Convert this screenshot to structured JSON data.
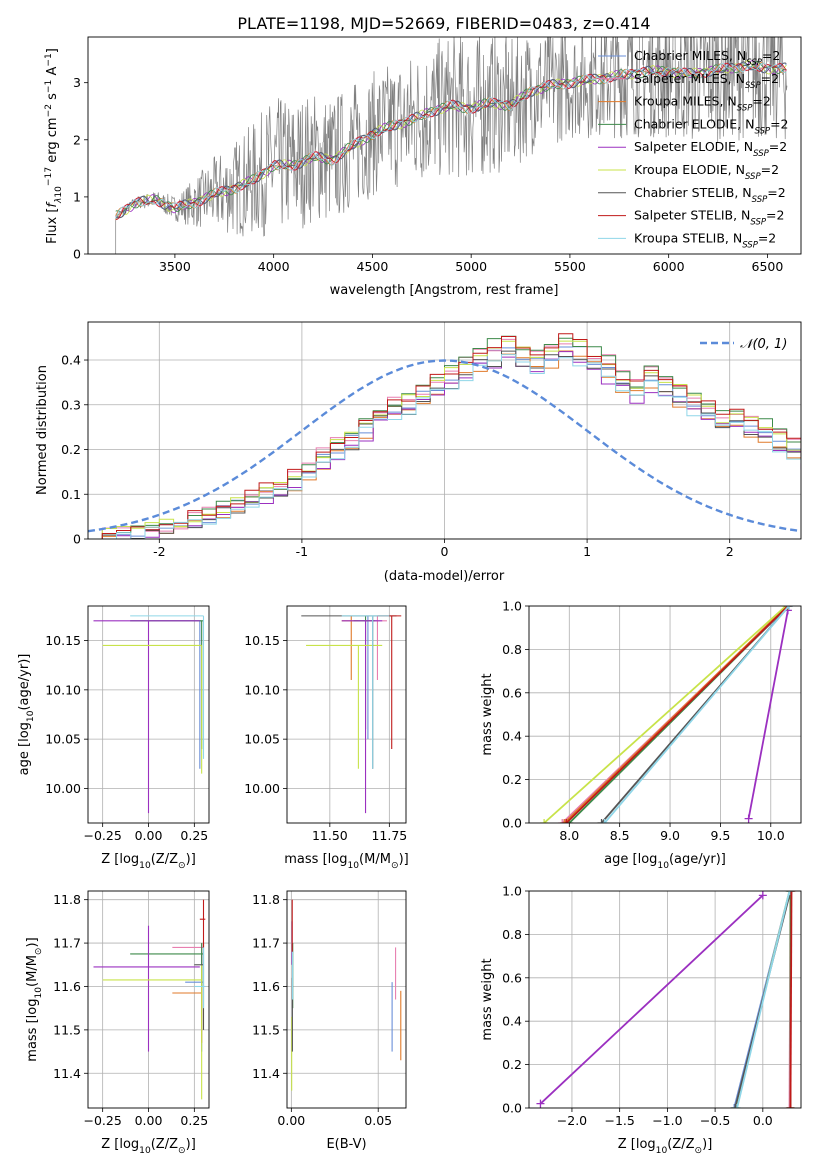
{
  "figure_title": "PLATE=1198, MJD=52669, FIBERID=0483, z=0.414",
  "legend": [
    {
      "label": "Chabrier MILES, N_SSP=2",
      "prefix": "Chabrier MILES, N",
      "color": "#6a8fd8"
    },
    {
      "label": "Salpeter MILES, N_SSP=2",
      "prefix": "Salpeter MILES, N",
      "color": "#e87fb0"
    },
    {
      "label": "Kroupa MILES, N_SSP=2",
      "prefix": "Kroupa MILES, N",
      "color": "#e07a2a"
    },
    {
      "label": "Chabrier ELODIE, N_SSP=2",
      "prefix": "Chabrier ELODIE, N",
      "color": "#3d8a4a"
    },
    {
      "label": "Salpeter ELODIE, N_SSP=2",
      "prefix": "Salpeter ELODIE, N",
      "color": "#9b30c0"
    },
    {
      "label": "Kroupa ELODIE, N_SSP=2",
      "prefix": "Kroupa ELODIE, N",
      "color": "#c8e34a"
    },
    {
      "label": "Chabrier STELIB, N_SSP=2",
      "prefix": "Chabrier STELIB, N",
      "color": "#555555"
    },
    {
      "label": "Salpeter STELIB, N_SSP=2",
      "prefix": "Salpeter STELIB, N",
      "color": "#c01a1a"
    },
    {
      "label": "Kroupa STELIB, N_SSP=2",
      "prefix": "Kroupa STELIB, N",
      "color": "#8fd6e8"
    }
  ],
  "legend_sub": "SSP",
  "legend_suffix": "=2",
  "normal_legend": "𝒩(0, 1)",
  "chart_data": [
    {
      "id": "spectrum",
      "type": "line",
      "xlabel": "wavelength [Angstrom, rest frame]",
      "ylabel_parts": [
        "Flux [",
        "f",
        "λ",
        "10",
        "−17",
        " erg cm",
        "−2",
        " s",
        "−1",
        " A",
        "−1",
        "]"
      ],
      "xlim": [
        3060,
        6670
      ],
      "ylim": [
        0,
        3.8
      ],
      "xticks": [
        3500,
        4000,
        4500,
        5000,
        5500,
        6000,
        6500
      ],
      "yticks": [
        0,
        1,
        2,
        3
      ],
      "data_start": 3200,
      "model_anchors": [
        [
          3200,
          0.65
        ],
        [
          3300,
          0.9
        ],
        [
          3400,
          0.95
        ],
        [
          3500,
          0.8
        ],
        [
          3600,
          0.9
        ],
        [
          3700,
          1.05
        ],
        [
          3800,
          1.15
        ],
        [
          3900,
          1.3
        ],
        [
          4000,
          1.55
        ],
        [
          4100,
          1.55
        ],
        [
          4200,
          1.7
        ],
        [
          4300,
          1.65
        ],
        [
          4400,
          1.9
        ],
        [
          4500,
          2.1
        ],
        [
          4600,
          2.25
        ],
        [
          4700,
          2.35
        ],
        [
          4800,
          2.5
        ],
        [
          4900,
          2.6
        ],
        [
          5000,
          2.55
        ],
        [
          5100,
          2.65
        ],
        [
          5200,
          2.6
        ],
        [
          5300,
          2.85
        ],
        [
          5400,
          2.95
        ],
        [
          5500,
          3.0
        ],
        [
          5600,
          3.05
        ],
        [
          5700,
          3.1
        ],
        [
          5800,
          3.15
        ],
        [
          5900,
          3.2
        ],
        [
          6000,
          3.2
        ],
        [
          6100,
          3.15
        ],
        [
          6200,
          3.2
        ],
        [
          6300,
          3.25
        ],
        [
          6400,
          3.3
        ],
        [
          6500,
          3.25
        ]
      ],
      "noise_anchors": [
        [
          3200,
          0.05
        ],
        [
          3500,
          0.2
        ],
        [
          3700,
          0.6
        ],
        [
          4000,
          1.1
        ],
        [
          4500,
          1.0
        ],
        [
          5000,
          1.2
        ],
        [
          5500,
          0.9
        ],
        [
          6000,
          1.1
        ],
        [
          6500,
          1.2
        ]
      ]
    },
    {
      "id": "residuals",
      "type": "histogram",
      "xlabel": "(data-model)/error",
      "ylabel": "Normed distribution",
      "xlim": [
        -2.5,
        2.5
      ],
      "ylim": [
        0,
        0.485
      ],
      "xticks": [
        -2,
        -1,
        0,
        1,
        2
      ],
      "yticks": [
        0.0,
        0.1,
        0.2,
        0.3,
        0.4
      ],
      "bin_start": -2.5,
      "bin_width": 0.1,
      "base_bins": [
        0.005,
        0.008,
        0.012,
        0.015,
        0.02,
        0.025,
        0.03,
        0.04,
        0.05,
        0.06,
        0.075,
        0.09,
        0.1,
        0.11,
        0.13,
        0.15,
        0.18,
        0.2,
        0.22,
        0.25,
        0.27,
        0.29,
        0.3,
        0.32,
        0.34,
        0.36,
        0.38,
        0.4,
        0.41,
        0.42,
        0.41,
        0.4,
        0.41,
        0.43,
        0.42,
        0.4,
        0.38,
        0.35,
        0.33,
        0.36,
        0.34,
        0.32,
        0.3,
        0.28,
        0.26,
        0.27,
        0.25,
        0.24,
        0.22,
        0.2,
        0.18,
        0.2,
        0.17,
        0.15,
        0.13,
        0.1,
        0.09,
        0.08,
        0.075,
        0.07,
        0.06,
        0.05,
        0.045,
        0.04,
        0.045,
        0.04,
        0.035,
        0.04,
        0.035,
        0.04,
        0.04,
        0.04,
        0.045,
        0.04,
        0.04,
        0.045,
        0.04,
        0.045,
        0.04,
        0.045
      ],
      "series_offsets": [
        0.0,
        0.015,
        -0.012,
        0.02,
        -0.018,
        0.01,
        -0.008,
        0.018,
        -0.015
      ],
      "normal": {
        "mean": 0,
        "sigma": 1,
        "color": "#5b8bd9",
        "dash": true
      }
    },
    {
      "id": "age_vs_Z",
      "type": "errorbar",
      "xlabel_parts": [
        "Z [log",
        "10",
        "(Z/Z",
        "⊙",
        ")]"
      ],
      "ylabel_parts": [
        "age  [log",
        "10",
        "(age/yr)]"
      ],
      "xlim": [
        -0.33,
        0.33
      ],
      "ylim": [
        9.965,
        10.185
      ],
      "xticks": [
        -0.25,
        0.0,
        0.25
      ],
      "xticklabels": [
        "−0.25",
        "0.00",
        "0.25"
      ],
      "yticks": [
        10.0,
        10.05,
        10.1,
        10.15
      ],
      "yticklabels": [
        "10.00",
        "10.05",
        "10.10",
        "10.15"
      ],
      "points": [
        {
          "x": 0.28,
          "y": 10.17,
          "xlo": -0.1,
          "xhi": 0.29,
          "ylo": 10.02,
          "yhi": 10.17,
          "c": 0
        },
        {
          "x": 0.29,
          "y": 10.17,
          "xlo": -0.1,
          "xhi": 0.3,
          "ylo": 10.04,
          "yhi": 10.17,
          "c": 3
        },
        {
          "x": 0.0,
          "y": 10.17,
          "xlo": -0.3,
          "xhi": 0.28,
          "ylo": 9.975,
          "yhi": 10.17,
          "c": 4
        },
        {
          "x": 0.29,
          "y": 10.145,
          "xlo": -0.25,
          "xhi": 0.29,
          "ylo": 10.015,
          "yhi": 10.145,
          "c": 5
        },
        {
          "x": 0.3,
          "y": 10.175,
          "xlo": -0.1,
          "xhi": 0.3,
          "ylo": 10.03,
          "yhi": 10.175,
          "c": 8
        }
      ]
    },
    {
      "id": "age_vs_mass",
      "type": "errorbar",
      "xlabel_parts": [
        "mass [log",
        "10",
        "(M/M",
        "⊙",
        ")]"
      ],
      "xlim": [
        11.32,
        11.82
      ],
      "ylim": [
        9.965,
        10.185
      ],
      "xticks": [
        11.5,
        11.75
      ],
      "xticklabels": [
        "11.50",
        "11.75"
      ],
      "yticks": [
        10.0,
        10.05,
        10.1,
        10.15
      ],
      "yticklabels": [
        "10.00",
        "10.05",
        "10.10",
        "10.15"
      ],
      "points": [
        {
          "x": 11.66,
          "y": 10.17,
          "xlo": 11.6,
          "xhi": 11.7,
          "ylo": 10.05,
          "yhi": 10.175,
          "c": 0
        },
        {
          "x": 11.7,
          "y": 10.17,
          "xlo": 11.62,
          "xhi": 11.74,
          "ylo": 10.11,
          "yhi": 10.175,
          "c": 1
        },
        {
          "x": 11.59,
          "y": 10.17,
          "xlo": 11.55,
          "xhi": 11.62,
          "ylo": 10.11,
          "yhi": 10.175,
          "c": 2
        },
        {
          "x": 11.65,
          "y": 10.17,
          "xlo": 11.6,
          "xhi": 11.69,
          "ylo": 10.06,
          "yhi": 10.175,
          "c": 3
        },
        {
          "x": 11.65,
          "y": 10.17,
          "xlo": 11.55,
          "xhi": 11.72,
          "ylo": 9.975,
          "yhi": 10.17,
          "c": 4
        },
        {
          "x": 11.62,
          "y": 10.145,
          "xlo": 11.4,
          "xhi": 11.72,
          "ylo": 10.02,
          "yhi": 10.145,
          "c": 5
        },
        {
          "x": 11.68,
          "y": 10.175,
          "xlo": 11.38,
          "xhi": 11.78,
          "ylo": 10.02,
          "yhi": 10.175,
          "c": 6
        },
        {
          "x": 11.76,
          "y": 10.175,
          "xlo": 11.7,
          "xhi": 11.8,
          "ylo": 10.04,
          "yhi": 10.175,
          "c": 7
        },
        {
          "x": 11.68,
          "y": 10.175,
          "xlo": 11.55,
          "xhi": 11.75,
          "ylo": 10.02,
          "yhi": 10.175,
          "c": 8
        }
      ]
    },
    {
      "id": "cumulative_age",
      "type": "line",
      "xlabel_parts": [
        "age  [log",
        "10",
        "(age/yr)]"
      ],
      "ylabel": "mass weight",
      "xlim": [
        7.6,
        10.3
      ],
      "ylim": [
        0,
        1.0
      ],
      "xticks": [
        8.0,
        8.5,
        9.0,
        9.5,
        10.0
      ],
      "xticklabels": [
        "8.0",
        "8.5",
        "9.0",
        "9.5",
        "10.0"
      ],
      "yticks": [
        0.0,
        0.2,
        0.4,
        0.6,
        0.8,
        1.0
      ],
      "yticklabels": [
        "0.0",
        "0.2",
        "0.4",
        "0.6",
        "0.8",
        "1.0"
      ],
      "series": [
        {
          "c": 0,
          "x": [
            7.95,
            10.18
          ],
          "y": [
            0.0,
            1.0
          ]
        },
        {
          "c": 1,
          "x": [
            7.93,
            10.17
          ],
          "y": [
            0.0,
            1.0
          ]
        },
        {
          "c": 2,
          "x": [
            7.95,
            10.16
          ],
          "y": [
            0.0,
            1.0
          ]
        },
        {
          "c": 3,
          "x": [
            8.0,
            10.17
          ],
          "y": [
            0.0,
            1.0
          ]
        },
        {
          "c": 4,
          "x": [
            9.78,
            10.17
          ],
          "y": [
            0.02,
            0.98
          ]
        },
        {
          "c": 5,
          "x": [
            7.75,
            10.15
          ],
          "y": [
            0.0,
            1.0
          ]
        },
        {
          "c": 6,
          "x": [
            8.32,
            10.18
          ],
          "y": [
            0.0,
            1.0
          ]
        },
        {
          "c": 7,
          "x": [
            7.97,
            10.17
          ],
          "y": [
            0.0,
            1.0
          ]
        },
        {
          "c": 8,
          "x": [
            8.35,
            10.18
          ],
          "y": [
            0.0,
            1.0
          ]
        }
      ]
    },
    {
      "id": "mass_vs_Z",
      "type": "errorbar",
      "xlabel_parts": [
        "Z [log",
        "10",
        "(Z/Z",
        "⊙",
        ")]"
      ],
      "ylabel_parts": [
        "mass [log",
        "10",
        "(M/M",
        "⊙",
        ")]"
      ],
      "xlim": [
        -0.33,
        0.33
      ],
      "ylim": [
        11.32,
        11.82
      ],
      "xticks": [
        -0.25,
        0.0,
        0.25
      ],
      "xticklabels": [
        "−0.25",
        "0.00",
        "0.25"
      ],
      "yticks": [
        11.4,
        11.5,
        11.6,
        11.7,
        11.8
      ],
      "yticklabels": [
        "11.4",
        "11.5",
        "11.6",
        "11.7",
        "11.8"
      ],
      "points": [
        {
          "x": 0.29,
          "y": 11.61,
          "xlo": 0.2,
          "xhi": 0.3,
          "ylo": 11.45,
          "yhi": 11.68,
          "c": 0
        },
        {
          "x": 0.29,
          "y": 11.69,
          "xlo": 0.13,
          "xhi": 0.3,
          "ylo": 11.6,
          "yhi": 11.7,
          "c": 1
        },
        {
          "x": 0.29,
          "y": 11.585,
          "xlo": 0.13,
          "xhi": 0.29,
          "ylo": 11.47,
          "yhi": 11.6,
          "c": 2
        },
        {
          "x": 0.29,
          "y": 11.675,
          "xlo": -0.1,
          "xhi": 0.3,
          "ylo": 11.6,
          "yhi": 11.7,
          "c": 3
        },
        {
          "x": 0.0,
          "y": 11.645,
          "xlo": -0.3,
          "xhi": 0.28,
          "ylo": 11.45,
          "yhi": 11.74,
          "c": 4
        },
        {
          "x": 0.29,
          "y": 11.615,
          "xlo": -0.25,
          "xhi": 0.29,
          "ylo": 11.34,
          "yhi": 11.65,
          "c": 5
        },
        {
          "x": 0.3,
          "y": 11.65,
          "xlo": 0.25,
          "xhi": 0.3,
          "ylo": 11.5,
          "yhi": 11.7,
          "c": 6
        },
        {
          "x": 0.3,
          "y": 11.755,
          "xlo": 0.28,
          "xhi": 0.31,
          "ylo": 11.69,
          "yhi": 11.8,
          "c": 7
        },
        {
          "x": 0.3,
          "y": 11.6,
          "xlo": 0.25,
          "xhi": 0.31,
          "ylo": 11.55,
          "yhi": 11.69,
          "c": 8
        }
      ]
    },
    {
      "id": "mass_vs_EBV",
      "type": "errorbar",
      "xlabel": "E(B-V)",
      "xlim": [
        -0.0025,
        0.066
      ],
      "ylim": [
        11.32,
        11.82
      ],
      "xticks": [
        0.0,
        0.05
      ],
      "xticklabels": [
        "0.00",
        "0.05"
      ],
      "yticks": [
        11.4,
        11.5,
        11.6,
        11.7,
        11.8
      ],
      "yticklabels": [
        "11.4",
        "11.5",
        "11.6",
        "11.7",
        "11.8"
      ],
      "points": [
        {
          "x": 0.058,
          "y": 11.54,
          "xlo": 0.058,
          "xhi": 0.058,
          "ylo": 11.45,
          "yhi": 11.61,
          "c": 0
        },
        {
          "x": 0.06,
          "y": 11.64,
          "xlo": 0.06,
          "xhi": 0.06,
          "ylo": 11.57,
          "yhi": 11.69,
          "c": 1
        },
        {
          "x": 0.063,
          "y": 11.52,
          "xlo": 0.063,
          "xhi": 0.063,
          "ylo": 11.43,
          "yhi": 11.59,
          "c": 2
        },
        {
          "x": 0.0008,
          "y": 11.62,
          "xlo": 0.0008,
          "xhi": 0.0008,
          "ylo": 11.55,
          "yhi": 11.7,
          "c": 3
        },
        {
          "x": 0.0004,
          "y": 11.7,
          "xlo": 0.0004,
          "xhi": 0.0004,
          "ylo": 11.65,
          "yhi": 11.75,
          "c": 4
        },
        {
          "x": 0.0002,
          "y": 11.45,
          "xlo": 0.0002,
          "xhi": 0.0002,
          "ylo": 11.36,
          "yhi": 11.53,
          "c": 5
        },
        {
          "x": 0.0006,
          "y": 11.55,
          "xlo": 0.0006,
          "xhi": 0.0006,
          "ylo": 11.45,
          "yhi": 11.62,
          "c": 6
        },
        {
          "x": 0.0005,
          "y": 11.74,
          "xlo": 0.0005,
          "xhi": 0.0005,
          "ylo": 11.68,
          "yhi": 11.8,
          "c": 7
        },
        {
          "x": 0.0007,
          "y": 11.63,
          "xlo": 0.0007,
          "xhi": 0.0007,
          "ylo": 11.57,
          "yhi": 11.68,
          "c": 8
        }
      ]
    },
    {
      "id": "cumulative_Z",
      "type": "line",
      "xlabel_parts": [
        "Z [log",
        "10",
        "(Z/Z",
        "⊙",
        ")]"
      ],
      "ylabel": "mass weight",
      "xlim": [
        -2.45,
        0.4
      ],
      "ylim": [
        0,
        1.0
      ],
      "xticks": [
        -2.0,
        -1.5,
        -1.0,
        -0.5,
        0.0
      ],
      "xticklabels": [
        "−2.0",
        "−1.5",
        "−1.0",
        "−0.5",
        "0.0"
      ],
      "yticks": [
        0.0,
        0.2,
        0.4,
        0.6,
        0.8,
        1.0
      ],
      "yticklabels": [
        "0.0",
        "0.2",
        "0.4",
        "0.6",
        "0.8",
        "1.0"
      ],
      "series": [
        {
          "c": 0,
          "x": [
            -0.3,
            0.28
          ],
          "y": [
            0.0,
            1.0
          ]
        },
        {
          "c": 1,
          "x": [
            0.28,
            0.29
          ],
          "y": [
            0.0,
            1.0
          ]
        },
        {
          "c": 2,
          "x": [
            0.29,
            0.29
          ],
          "y": [
            0.0,
            1.0
          ]
        },
        {
          "c": 3,
          "x": [
            0.29,
            0.29
          ],
          "y": [
            0.0,
            1.0
          ]
        },
        {
          "c": 4,
          "x": [
            -2.33,
            0.0
          ],
          "y": [
            0.02,
            0.98
          ]
        },
        {
          "c": 5,
          "x": [
            -0.28,
            0.28
          ],
          "y": [
            0.0,
            1.0
          ]
        },
        {
          "c": 6,
          "x": [
            -0.29,
            0.29
          ],
          "y": [
            0.0,
            1.0
          ]
        },
        {
          "c": 7,
          "x": [
            0.29,
            0.3
          ],
          "y": [
            0.0,
            1.0
          ]
        },
        {
          "c": 8,
          "x": [
            -0.27,
            0.28
          ],
          "y": [
            0.0,
            1.0
          ]
        }
      ]
    }
  ]
}
